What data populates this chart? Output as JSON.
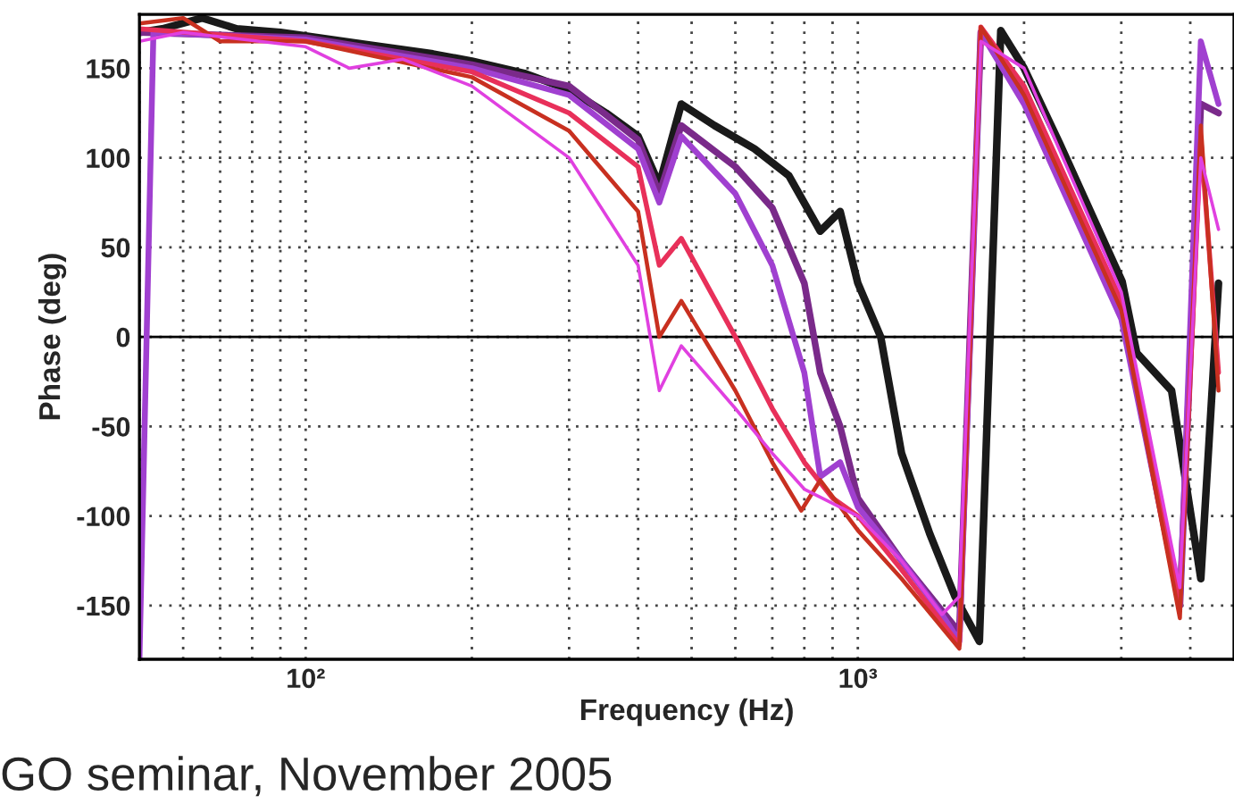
{
  "chart_data": {
    "type": "line",
    "xlabel": "Frequency (Hz)",
    "ylabel": "Phase (deg)",
    "log": "x",
    "grid": true,
    "line_style": "solid",
    "marker": "none",
    "xlim": [
      50,
      4800
    ],
    "ylim": [
      -180,
      180
    ],
    "xticks": [
      {
        "value": 50,
        "label": null
      },
      {
        "value": 60,
        "label": null
      },
      {
        "value": 70,
        "label": null
      },
      {
        "value": 80,
        "label": null
      },
      {
        "value": 90,
        "label": null
      },
      {
        "value": 100,
        "label": "10²"
      },
      {
        "value": 200,
        "label": null
      },
      {
        "value": 300,
        "label": null
      },
      {
        "value": 400,
        "label": null
      },
      {
        "value": 500,
        "label": null
      },
      {
        "value": 600,
        "label": null
      },
      {
        "value": 700,
        "label": null
      },
      {
        "value": 800,
        "label": null
      },
      {
        "value": 900,
        "label": null
      },
      {
        "value": 1000,
        "label": "10³"
      },
      {
        "value": 2000,
        "label": null
      },
      {
        "value": 3000,
        "label": null
      },
      {
        "value": 4000,
        "label": null
      }
    ],
    "yticks": [
      -150,
      -100,
      -50,
      0,
      50,
      100,
      150
    ],
    "ref_lines": [
      {
        "axis": "y",
        "value": 0,
        "color": "#000000",
        "line_style": "solid"
      }
    ],
    "annotations": [
      "GO seminar, November 2005"
    ],
    "series": [
      {
        "color": "#1a1a1a",
        "x": [
          50,
          55,
          65,
          75,
          90,
          100,
          130,
          170,
          200,
          250,
          300,
          350,
          400,
          437,
          479,
          550,
          650,
          750,
          855,
          929,
          1000,
          1100,
          1200,
          1350,
          1500,
          1660,
          1815,
          2000,
          2320,
          3010,
          3200,
          3700,
          4180,
          4500
        ],
        "values": [
          170,
          172,
          178,
          172,
          170,
          168,
          163,
          158,
          154,
          147,
          138,
          125,
          112,
          85,
          130,
          118,
          105,
          90,
          59,
          70,
          30,
          0,
          -65,
          -110,
          -145,
          -170,
          171,
          150,
          108,
          31,
          -9,
          -30,
          -135,
          30
        ]
      },
      {
        "color": "#7a2a8a",
        "x": [
          50,
          100,
          200,
          300,
          400,
          437,
          479,
          600,
          700,
          800,
          855,
          929,
          1000,
          1200,
          1527,
          1670,
          2000,
          3000,
          3830,
          4180,
          4500
        ],
        "values": [
          170,
          167,
          152,
          140,
          110,
          80,
          118,
          95,
          72,
          30,
          -20,
          -50,
          -90,
          -125,
          -165,
          170,
          135,
          15,
          -150,
          130,
          125
        ]
      },
      {
        "color": "#a040d0",
        "x": [
          50,
          53,
          100,
          200,
          300,
          400,
          437,
          479,
          600,
          700,
          800,
          855,
          929,
          1000,
          1200,
          1420,
          1527,
          1670,
          2000,
          3000,
          3830,
          4180,
          4500
        ],
        "values": [
          -180,
          170,
          166,
          150,
          135,
          105,
          75,
          112,
          80,
          40,
          -20,
          -78,
          -70,
          -95,
          -125,
          -155,
          -170,
          170,
          130,
          10,
          -150,
          165,
          130
        ]
      },
      {
        "color": "#e8305a",
        "x": [
          50,
          100,
          200,
          300,
          400,
          437,
          479,
          600,
          700,
          800,
          900,
          1000,
          1200,
          1527,
          1670,
          2000,
          3000,
          3830,
          4180,
          4500
        ],
        "values": [
          172,
          165,
          148,
          125,
          95,
          40,
          55,
          0,
          -40,
          -70,
          -90,
          -100,
          -130,
          -172,
          173,
          140,
          20,
          -150,
          110,
          -20
        ]
      },
      {
        "color": "#c83020",
        "x": [
          50,
          60,
          70,
          100,
          200,
          300,
          400,
          437,
          479,
          600,
          700,
          790,
          855,
          1000,
          1200,
          1527,
          1670,
          2000,
          3000,
          3830,
          4180,
          4500
        ],
        "values": [
          175,
          178,
          165,
          165,
          145,
          115,
          70,
          0,
          20,
          -30,
          -70,
          -97,
          -80,
          -108,
          -135,
          -174,
          173,
          135,
          15,
          -157,
          118,
          -30
        ]
      },
      {
        "color": "#e040e0",
        "x": [
          50,
          60,
          100,
          120,
          150,
          200,
          300,
          400,
          437,
          479,
          600,
          700,
          800,
          1000,
          1200,
          1420,
          1527,
          1670,
          2000,
          3000,
          3830,
          4180,
          4500
        ],
        "values": [
          165,
          170,
          162,
          150,
          155,
          140,
          100,
          40,
          -30,
          -5,
          -40,
          -65,
          -85,
          -100,
          -125,
          -155,
          -145,
          165,
          150,
          25,
          -140,
          100,
          60
        ]
      }
    ]
  }
}
